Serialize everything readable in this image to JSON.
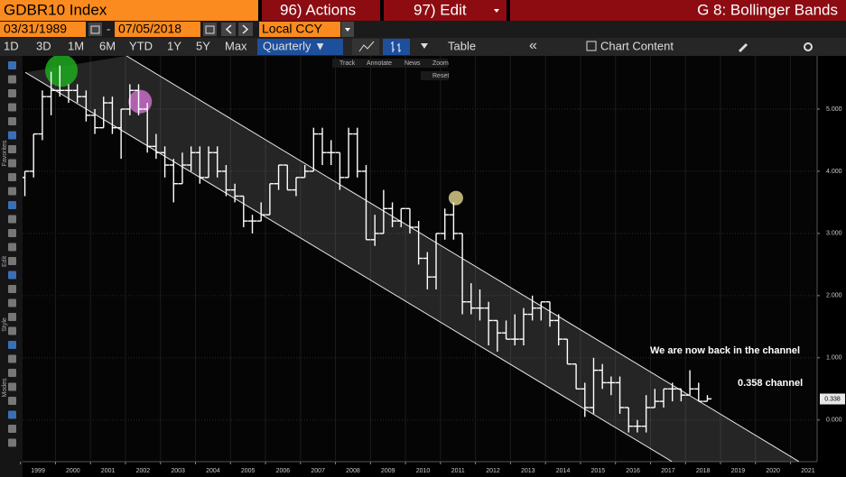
{
  "header": {
    "ticker": "GDBR10 Index",
    "actions": "96) Actions",
    "edit": "97) Edit",
    "function": "G 8: Bollinger Bands"
  },
  "controls": {
    "start_date": "03/31/1989",
    "separator": "-",
    "end_date": "07/05/2018",
    "currency": "Local CCY",
    "ranges": [
      "1D",
      "3D",
      "1M",
      "6M",
      "YTD",
      "1Y",
      "5Y",
      "Max"
    ],
    "frequency": "Quarterly ▼",
    "table": "Table",
    "collapse": "«",
    "chart_content": "Chart Content"
  },
  "chart_tools": [
    "Track",
    "Annotate",
    "News",
    "Zoom",
    "Reset"
  ],
  "sidebar": [
    "Favorites",
    "Edit",
    "Style",
    "Modes"
  ],
  "chart_data": {
    "type": "ohlc",
    "color": "#ffffff",
    "grid": true,
    "x": [
      1999.125,
      1999.375,
      1999.625,
      1999.875,
      2000.125,
      2000.375,
      2000.625,
      2000.875,
      2001.125,
      2001.375,
      2001.625,
      2001.875,
      2002.125,
      2002.375,
      2002.625,
      2002.875,
      2003.125,
      2003.375,
      2003.625,
      2003.875,
      2004.125,
      2004.375,
      2004.625,
      2004.875,
      2005.125,
      2005.375,
      2005.625,
      2005.875,
      2006.125,
      2006.375,
      2006.625,
      2006.875,
      2007.125,
      2007.375,
      2007.625,
      2007.875,
      2008.125,
      2008.375,
      2008.625,
      2008.875,
      2009.125,
      2009.375,
      2009.625,
      2009.875,
      2010.125,
      2010.375,
      2010.625,
      2010.875,
      2011.125,
      2011.375,
      2011.625,
      2011.875,
      2012.125,
      2012.375,
      2012.625,
      2012.875,
      2013.125,
      2013.375,
      2013.625,
      2013.875,
      2014.125,
      2014.375,
      2014.625,
      2014.875,
      2015.125,
      2015.375,
      2015.625,
      2015.875,
      2016.125,
      2016.375,
      2016.625,
      2016.875,
      2017.125,
      2017.375,
      2017.625,
      2017.875,
      2018.125,
      2018.375,
      2018.625
    ],
    "open": [
      3.9,
      4.0,
      4.6,
      5.2,
      5.3,
      5.3,
      5.3,
      5.2,
      4.9,
      4.7,
      5.1,
      4.7,
      5.0,
      5.3,
      5.0,
      4.4,
      4.3,
      4.1,
      3.8,
      4.1,
      4.3,
      3.9,
      4.3,
      4.0,
      3.7,
      3.6,
      3.2,
      3.2,
      3.3,
      3.8,
      4.1,
      3.7,
      3.9,
      4.0,
      4.6,
      4.3,
      4.3,
      3.9,
      4.6,
      4.0,
      2.9,
      3.0,
      3.4,
      3.2,
      3.4,
      3.1,
      2.6,
      2.3,
      3.0,
      3.3,
      3.0,
      1.9,
      1.8,
      1.8,
      1.6,
      1.4,
      1.3,
      1.3,
      1.7,
      1.8,
      1.9,
      1.6,
      1.3,
      0.9,
      0.5,
      0.2,
      0.8,
      0.6,
      0.6,
      0.2,
      -0.1,
      -0.1,
      0.2,
      0.3,
      0.5,
      0.5,
      0.4,
      0.5,
      0.3
    ],
    "high": [
      4.0,
      4.6,
      5.3,
      5.6,
      5.7,
      5.4,
      5.4,
      5.3,
      5.0,
      5.2,
      5.2,
      5.0,
      5.4,
      5.4,
      5.1,
      4.6,
      4.4,
      4.2,
      4.3,
      4.4,
      4.4,
      4.4,
      4.4,
      4.1,
      3.8,
      3.6,
      3.3,
      3.5,
      3.8,
      4.1,
      4.1,
      3.9,
      4.1,
      4.7,
      4.7,
      4.5,
      4.3,
      4.7,
      4.7,
      4.1,
      3.3,
      3.7,
      3.5,
      3.4,
      3.4,
      3.2,
      2.7,
      3.0,
      3.4,
      3.5,
      3.0,
      2.2,
      2.1,
      1.9,
      1.6,
      1.6,
      1.7,
      1.8,
      2.0,
      1.9,
      1.9,
      1.7,
      1.3,
      0.9,
      0.6,
      1.0,
      0.9,
      0.7,
      0.7,
      0.2,
      0.0,
      0.4,
      0.5,
      0.5,
      0.6,
      0.5,
      0.8,
      0.6,
      0.4
    ],
    "low": [
      3.6,
      3.9,
      4.5,
      4.9,
      5.2,
      5.1,
      5.1,
      4.8,
      4.6,
      4.7,
      4.6,
      4.2,
      4.9,
      4.9,
      4.3,
      4.2,
      3.9,
      3.5,
      3.8,
      4.0,
      3.8,
      3.9,
      3.9,
      3.6,
      3.5,
      3.1,
      3.0,
      3.2,
      3.3,
      3.7,
      3.7,
      3.6,
      3.9,
      4.0,
      4.1,
      4.1,
      3.7,
      3.9,
      3.9,
      2.9,
      2.8,
      3.0,
      3.1,
      3.1,
      3.0,
      2.5,
      2.1,
      2.1,
      2.9,
      2.9,
      1.7,
      1.7,
      1.6,
      1.2,
      1.1,
      1.3,
      1.2,
      1.2,
      1.6,
      1.6,
      1.5,
      1.2,
      0.9,
      0.5,
      0.05,
      0.1,
      0.5,
      0.4,
      0.1,
      -0.2,
      -0.2,
      -0.2,
      0.2,
      0.2,
      0.3,
      0.3,
      0.4,
      0.3,
      0.3
    ],
    "close": [
      4.0,
      4.6,
      5.2,
      5.3,
      5.3,
      5.3,
      5.2,
      4.9,
      4.7,
      5.1,
      4.7,
      5.0,
      5.3,
      5.0,
      4.4,
      4.3,
      4.1,
      3.8,
      4.1,
      4.3,
      3.9,
      4.3,
      4.0,
      3.7,
      3.6,
      3.2,
      3.2,
      3.3,
      3.8,
      4.1,
      3.7,
      3.9,
      4.0,
      4.6,
      4.3,
      4.3,
      3.9,
      4.6,
      4.0,
      2.9,
      3.0,
      3.4,
      3.2,
      3.4,
      3.1,
      2.6,
      2.3,
      3.0,
      3.3,
      3.0,
      1.9,
      1.8,
      1.8,
      1.6,
      1.4,
      1.3,
      1.3,
      1.7,
      1.8,
      1.9,
      1.6,
      1.3,
      0.9,
      0.5,
      0.2,
      0.8,
      0.6,
      0.6,
      0.2,
      -0.1,
      -0.1,
      0.2,
      0.3,
      0.5,
      0.5,
      0.4,
      0.5,
      0.3,
      0.34
    ],
    "channel": {
      "upper": {
        "x": [
          2002.03,
          2021.24
        ],
        "y": [
          5.855,
          -0.667
        ]
      },
      "lower": {
        "x": [
          1999.14,
          2017.61
        ],
        "y": [
          5.59,
          -0.667
        ]
      }
    },
    "highlights": [
      {
        "x": 2000.17,
        "y": 5.62,
        "color": "#1faa1f"
      },
      {
        "x": 2002.42,
        "y": 5.12,
        "color": "#c86fc8"
      },
      {
        "x": 2011.44,
        "y": 3.57,
        "color": "#d8cc8a"
      }
    ],
    "annotations": [
      "We are now back in the channel",
      "0.358 channel"
    ],
    "last_value": 0.338,
    "xlim": [
      1999.06,
      2021.76
    ],
    "ylim": [
      -0.67,
      5.855
    ],
    "xticks": [
      1999,
      2000,
      2001,
      2002,
      2003,
      2004,
      2005,
      2006,
      2007,
      2008,
      2009,
      2010,
      2011,
      2012,
      2013,
      2014,
      2015,
      2016,
      2017,
      2018,
      2019,
      2020,
      2021
    ],
    "yticks": [
      {
        "value": 0,
        "label": "0.000"
      },
      {
        "value": 1,
        "label": "1.000"
      },
      {
        "value": 2,
        "label": "2.000"
      },
      {
        "value": 3,
        "label": "3.000"
      },
      {
        "value": 4,
        "label": "4.000"
      },
      {
        "value": 5,
        "label": "5.000"
      }
    ]
  }
}
